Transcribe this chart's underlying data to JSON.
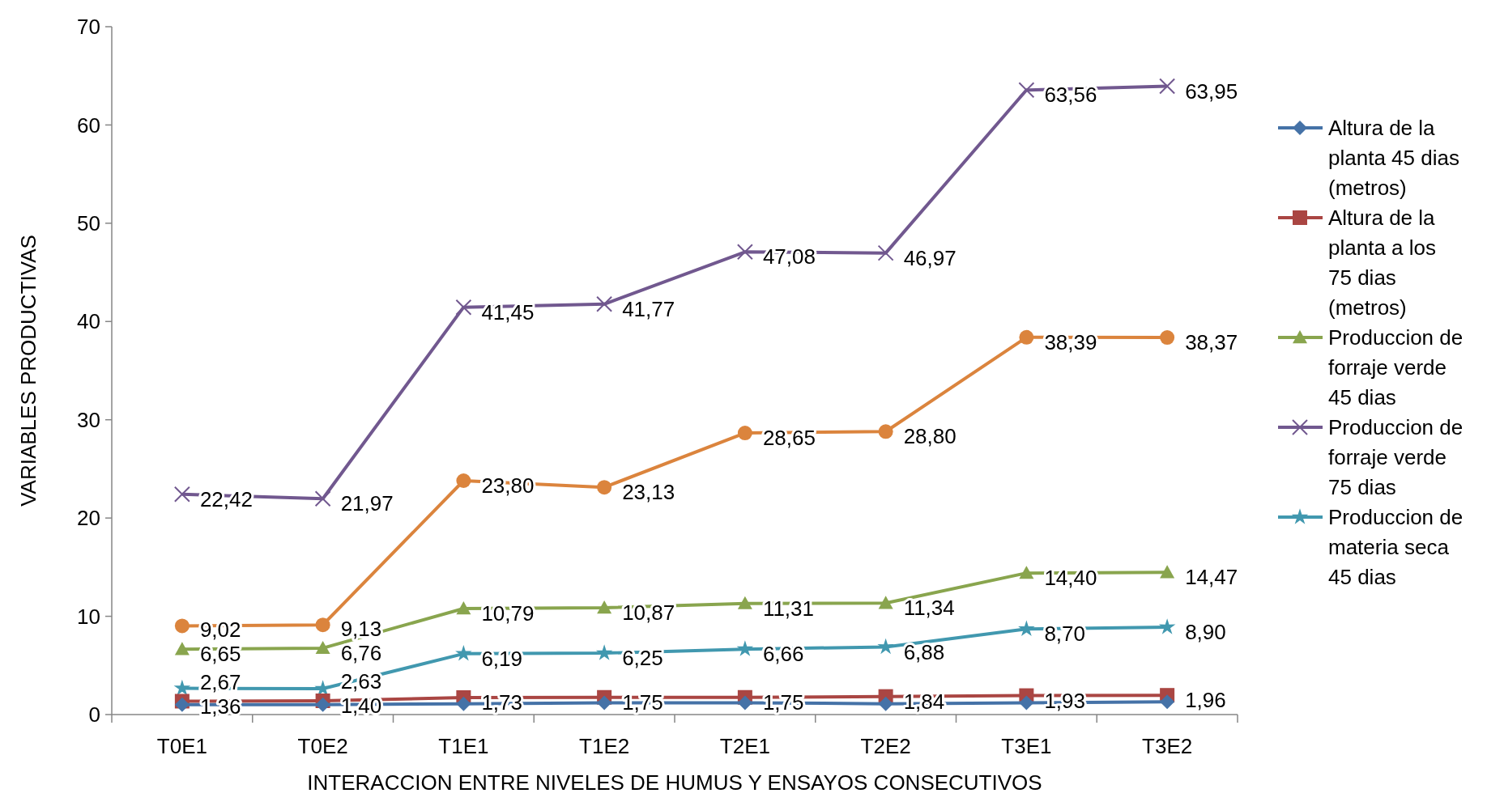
{
  "chart_data": {
    "type": "line",
    "xlabel": "INTERACCION ENTRE NIVELES DE HUMUS Y ENSAYOS CONSECUTIVOS",
    "ylabel": "VARIABLES PRODUCTIVAS",
    "categories": [
      "T0E1",
      "T0E2",
      "T1E1",
      "T1E2",
      "T2E1",
      "T2E2",
      "T3E1",
      "T3E2"
    ],
    "ylim": [
      0,
      70
    ],
    "yticks": [
      0,
      10,
      20,
      30,
      40,
      50,
      60,
      70
    ],
    "grid": false,
    "legend": "right",
    "series": [
      {
        "name": "Altura de la planta 45 dias (metros)",
        "color": "#4572a7",
        "marker": "diamond",
        "values": [
          1.0,
          1.0,
          1.1,
          1.2,
          1.2,
          1.1,
          1.2,
          1.3
        ]
      },
      {
        "name": "Altura de la planta a los 75 dias (metros)",
        "color": "#aa4643",
        "marker": "square",
        "values": [
          1.36,
          1.4,
          1.73,
          1.75,
          1.75,
          1.84,
          1.93,
          1.96
        ],
        "value_labels": [
          "1,36",
          "1,40",
          "1,73",
          "1,75",
          "1,75",
          "1,84",
          "1,93",
          "1,96"
        ]
      },
      {
        "name": "Produccion de forraje verde 45 dias",
        "color": "#89a54e",
        "marker": "triangle",
        "values": [
          6.65,
          6.76,
          10.79,
          10.87,
          11.31,
          11.34,
          14.4,
          14.47
        ],
        "value_labels": [
          "6,65",
          "6,76",
          "10,79",
          "10,87",
          "11,31",
          "11,34",
          "14,40",
          "14,47"
        ]
      },
      {
        "name": "Produccion de forraje verde 75 dias",
        "color": "#71588f",
        "marker": "cross",
        "values": [
          22.42,
          21.97,
          41.45,
          41.77,
          47.08,
          46.97,
          63.56,
          63.95
        ],
        "value_labels": [
          "22,42",
          "21,97",
          "41,45",
          "41,77",
          "47,08",
          "46,97",
          "63,56",
          "63,95"
        ]
      },
      {
        "name": "Produccion de materia seca 45 dias",
        "color": "#4198af",
        "marker": "star",
        "values": [
          2.67,
          2.63,
          6.19,
          6.25,
          6.66,
          6.88,
          8.7,
          8.9
        ],
        "value_labels": [
          "2,67",
          "2,63",
          "6,19",
          "6,25",
          "6,66",
          "6,88",
          "8,70",
          "8,90"
        ]
      },
      {
        "color": "#db843d",
        "marker": "circle",
        "values": [
          9.02,
          9.13,
          23.8,
          23.13,
          28.65,
          28.8,
          38.39,
          38.37
        ],
        "value_labels": [
          "9,02",
          "9,13",
          "23,80",
          "23,13",
          "28,65",
          "28,80",
          "38,39",
          "38,37"
        ]
      }
    ]
  }
}
